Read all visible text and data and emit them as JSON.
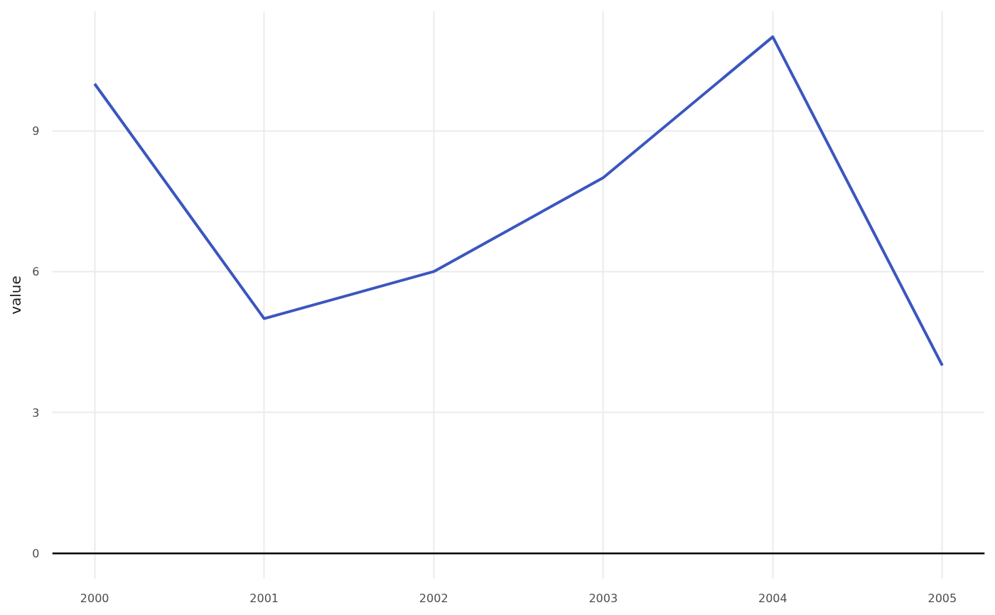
{
  "chart_data": {
    "type": "line",
    "ylabel": "value",
    "x": [
      2000,
      2001,
      2002,
      2003,
      2004,
      2005
    ],
    "series": [
      {
        "color": "#3b56bf",
        "values": [
          10,
          5,
          6,
          8,
          11,
          4
        ]
      }
    ],
    "xlim": [
      1999.75,
      2005.25
    ],
    "xticks": [
      2000,
      2001,
      2002,
      2003,
      2004,
      2005
    ],
    "ylim": [
      -0.55,
      11.55
    ],
    "yticks": [
      0,
      3,
      6,
      9
    ],
    "grid": true,
    "ref_lines": [
      {
        "axis": "y",
        "value": 0,
        "color": "#000000"
      }
    ]
  }
}
